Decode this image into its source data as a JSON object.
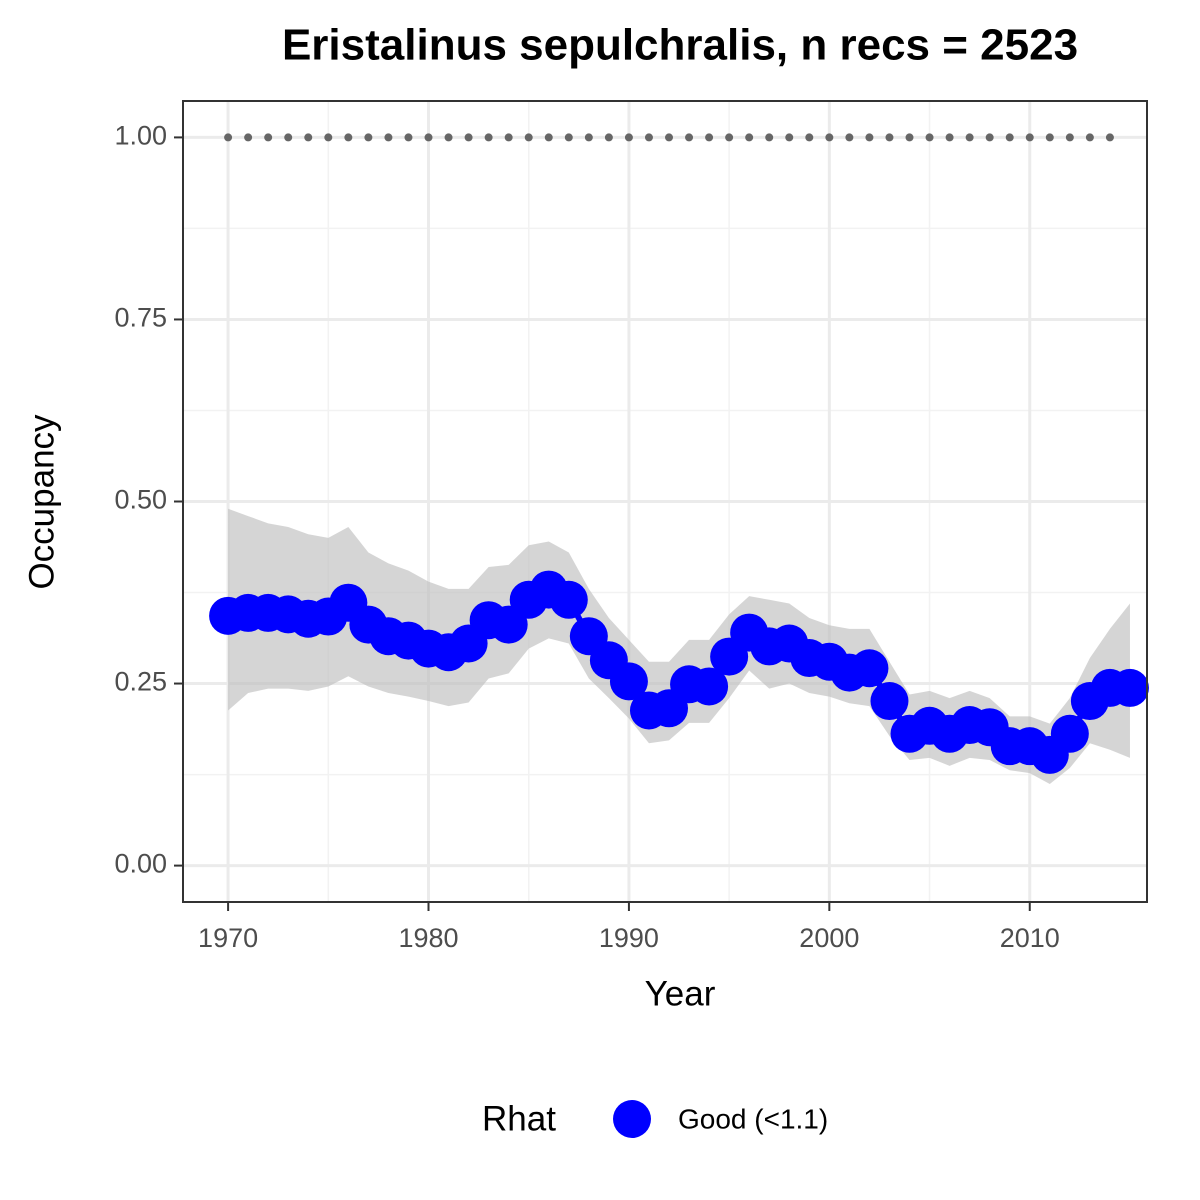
{
  "chart_data": {
    "type": "line",
    "title": "Eristalinus sepulchralis, n recs = 2523",
    "x_label": "Year",
    "y_label": "Occupancy",
    "x": [
      1970,
      1971,
      1972,
      1973,
      1974,
      1975,
      1976,
      1977,
      1978,
      1979,
      1980,
      1981,
      1982,
      1983,
      1984,
      1985,
      1986,
      1987,
      1988,
      1989,
      1990,
      1991,
      1992,
      1993,
      1994,
      1995,
      1996,
      1997,
      1998,
      1999,
      2000,
      2001,
      2002,
      2003,
      2004,
      2005,
      2006,
      2007,
      2008,
      2009,
      2010,
      2011,
      2012,
      2013,
      2014,
      2015
    ],
    "series": [
      {
        "name": "Good (<1.1)",
        "color": "#0000ff",
        "values": [
          0.343,
          0.347,
          0.347,
          0.345,
          0.339,
          0.342,
          0.361,
          0.331,
          0.315,
          0.309,
          0.298,
          0.293,
          0.305,
          0.337,
          0.331,
          0.365,
          0.379,
          0.365,
          0.315,
          0.282,
          0.253,
          0.213,
          0.216,
          0.249,
          0.246,
          0.287,
          0.32,
          0.301,
          0.305,
          0.285,
          0.28,
          0.265,
          0.271,
          0.226,
          0.181,
          0.192,
          0.181,
          0.193,
          0.19,
          0.164,
          0.164,
          0.152,
          0.181,
          0.226,
          0.244,
          0.244
        ],
        "lower": [
          0.213,
          0.237,
          0.243,
          0.243,
          0.24,
          0.246,
          0.26,
          0.246,
          0.237,
          0.232,
          0.226,
          0.219,
          0.224,
          0.257,
          0.264,
          0.298,
          0.312,
          0.305,
          0.257,
          0.23,
          0.202,
          0.168,
          0.172,
          0.196,
          0.196,
          0.23,
          0.268,
          0.243,
          0.25,
          0.237,
          0.232,
          0.223,
          0.219,
          0.178,
          0.145,
          0.148,
          0.137,
          0.148,
          0.145,
          0.131,
          0.127,
          0.112,
          0.134,
          0.168,
          0.159,
          0.148
        ],
        "upper": [
          0.49,
          0.48,
          0.47,
          0.465,
          0.455,
          0.45,
          0.465,
          0.43,
          0.415,
          0.405,
          0.39,
          0.38,
          0.38,
          0.41,
          0.413,
          0.44,
          0.445,
          0.43,
          0.38,
          0.34,
          0.31,
          0.28,
          0.28,
          0.31,
          0.31,
          0.345,
          0.37,
          0.365,
          0.36,
          0.34,
          0.33,
          0.325,
          0.325,
          0.28,
          0.235,
          0.24,
          0.23,
          0.24,
          0.23,
          0.205,
          0.205,
          0.195,
          0.23,
          0.285,
          0.325,
          0.36
        ]
      }
    ],
    "ribbon_color": "#bfbfbf",
    "dotted_line": {
      "y": 1,
      "x": [
        1970,
        1971,
        1972,
        1973,
        1974,
        1975,
        1976,
        1977,
        1978,
        1979,
        1980,
        1981,
        1982,
        1983,
        1984,
        1985,
        1986,
        1987,
        1988,
        1989,
        1990,
        1991,
        1992,
        1993,
        1994,
        1995,
        1996,
        1997,
        1998,
        1999,
        2000,
        2001,
        2002,
        2003,
        2004,
        2005,
        2006,
        2007,
        2008,
        2009,
        2010,
        2011,
        2012,
        2013,
        2014
      ],
      "color": "#666666"
    },
    "legend_title": "Rhat",
    "legend_position": "bottom",
    "xlim": [
      1967.75,
      2015.85
    ],
    "ylim": [
      -0.05,
      1.05
    ],
    "xticks": [
      1970,
      1980,
      1990,
      2000,
      2010
    ],
    "yticks": [
      {
        "value": 0,
        "label": "0.00"
      },
      {
        "value": 0.25,
        "label": "0.25"
      },
      {
        "value": 0.5,
        "label": "0.50"
      },
      {
        "value": 0.75,
        "label": "0.75"
      },
      {
        "value": 1,
        "label": "1.00"
      }
    ],
    "grid": true
  }
}
